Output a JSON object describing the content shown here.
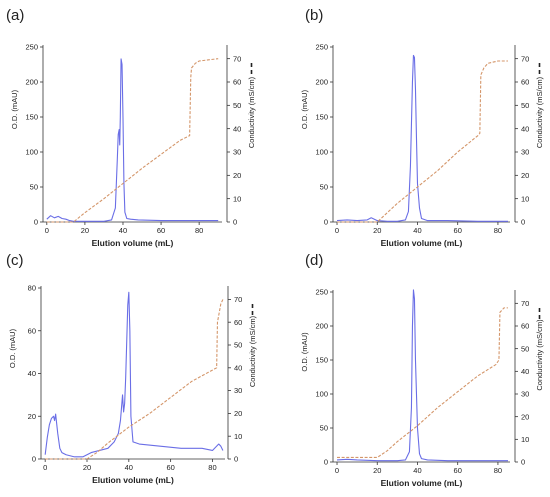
{
  "figure": {
    "colors": {
      "od": "#6a6ee6",
      "conductivity": "#d4966a",
      "axis": "#333333"
    }
  },
  "chart_data": [
    {
      "panel": "(a)",
      "type": "line",
      "xlabel": "Elution volume (mL)",
      "ylabel_left": "O.D. (mAU)",
      "ylabel_right": "Conductivity (mS/cm)",
      "xlim": [
        -2,
        92
      ],
      "xticks": [
        0,
        20,
        40,
        60,
        80
      ],
      "ylim_left": [
        0,
        250
      ],
      "yticks_left": [
        0,
        50,
        100,
        150,
        200,
        250
      ],
      "ylim_right": [
        0,
        75
      ],
      "yticks_right": [
        0,
        10,
        20,
        30,
        40,
        50,
        60,
        70
      ],
      "series": [
        {
          "axis": "left",
          "x": [
            0,
            2,
            4,
            6,
            8,
            10,
            12,
            14,
            18,
            24,
            30,
            34,
            36,
            37,
            37.5,
            38,
            38.3,
            38.6,
            39,
            39.5,
            40,
            40.5,
            41,
            42,
            44,
            48,
            60,
            80,
            90
          ],
          "y": [
            4,
            9,
            6,
            8,
            5,
            4,
            2,
            1,
            1,
            1,
            1,
            3,
            20,
            88,
            125,
            132,
            110,
            150,
            233,
            225,
            150,
            55,
            14,
            5,
            4,
            3,
            2,
            2,
            2
          ]
        },
        {
          "axis": "right",
          "x": [
            0,
            5,
            10,
            14,
            20,
            30,
            40,
            50,
            60,
            70,
            75,
            75.6,
            76,
            78,
            80,
            85,
            90
          ],
          "y": [
            0,
            0,
            0,
            0,
            4,
            10,
            16.5,
            23,
            29,
            35,
            37,
            62,
            66,
            68,
            69,
            69.5,
            70
          ]
        }
      ]
    },
    {
      "panel": "(b)",
      "type": "line",
      "xlabel": "Elution volume (mL)",
      "ylabel_left": "O.D. (mAU)",
      "ylabel_right": "Conductivity (mS/cm)",
      "xlim": [
        -2,
        86
      ],
      "xticks": [
        0,
        20,
        40,
        60,
        80
      ],
      "ylim_left": [
        0,
        250
      ],
      "yticks_left": [
        0,
        50,
        100,
        150,
        200,
        250
      ],
      "ylim_right": [
        0,
        75
      ],
      "yticks_right": [
        0,
        10,
        20,
        30,
        40,
        50,
        60,
        70
      ],
      "series": [
        {
          "axis": "left",
          "x": [
            0,
            5,
            10,
            15,
            17,
            20,
            25,
            30,
            34,
            35.5,
            36.5,
            37.5,
            38,
            38.5,
            39,
            39.5,
            40,
            41,
            42,
            45,
            55,
            70,
            85
          ],
          "y": [
            2,
            3,
            2,
            3,
            6,
            2,
            1,
            1,
            3,
            15,
            80,
            200,
            238,
            235,
            190,
            120,
            55,
            20,
            5,
            2,
            2,
            1,
            1
          ]
        },
        {
          "axis": "right",
          "x": [
            0,
            10,
            20,
            25,
            30,
            40,
            50,
            60,
            70,
            71,
            71.5,
            73,
            75,
            80,
            85
          ],
          "y": [
            0,
            0,
            0,
            4,
            8,
            15,
            22,
            30,
            37,
            38,
            63,
            66,
            68,
            69,
            69
          ]
        }
      ]
    },
    {
      "panel": "(c)",
      "type": "line",
      "xlabel": "Elution volume (mL)",
      "ylabel_left": "O.D. (mAU)",
      "ylabel_right": "Conductivity (mS/cm)",
      "xlim": [
        -2,
        86
      ],
      "xticks": [
        0,
        20,
        40,
        60,
        80
      ],
      "ylim_left": [
        0,
        80
      ],
      "yticks_left": [
        0,
        20,
        40,
        60,
        80
      ],
      "ylim_right": [
        0,
        75
      ],
      "yticks_right": [
        0,
        10,
        20,
        30,
        40,
        50,
        60,
        70
      ],
      "series": [
        {
          "axis": "left",
          "x": [
            0,
            1,
            2,
            3,
            4,
            4.5,
            5,
            6,
            7,
            8,
            10,
            14,
            18,
            20,
            22,
            26,
            30,
            33,
            35,
            36,
            37,
            37.5,
            38,
            38.5,
            39,
            39.5,
            40,
            40.5,
            41,
            42,
            45,
            55,
            65,
            75,
            80,
            83,
            84,
            85
          ],
          "y": [
            2,
            10,
            16,
            19,
            20,
            18,
            21,
            12,
            5,
            3,
            2,
            1,
            1,
            2,
            3,
            4,
            5,
            8,
            12,
            18,
            30,
            22,
            26,
            38,
            55,
            72,
            78,
            60,
            20,
            8,
            7,
            6,
            5,
            5,
            4,
            7,
            6,
            4
          ]
        },
        {
          "axis": "right",
          "x": [
            0,
            10,
            20,
            25,
            30,
            40,
            50,
            60,
            70,
            80,
            82,
            82.4,
            84,
            85
          ],
          "y": [
            0,
            0,
            0,
            3,
            7,
            14,
            20,
            27,
            34,
            39,
            40,
            60,
            68,
            70
          ]
        }
      ]
    },
    {
      "panel": "(d)",
      "type": "line",
      "xlabel": "Elution volume (mL)",
      "ylabel_left": "O.D. (mAU)",
      "ylabel_right": "Conductivity (mS/cm)",
      "xlim": [
        -2,
        86
      ],
      "xticks": [
        0,
        20,
        40,
        60,
        80
      ],
      "ylim_left": [
        0,
        250
      ],
      "yticks_left": [
        0,
        50,
        100,
        150,
        200,
        250
      ],
      "ylim_right": [
        0,
        75
      ],
      "yticks_right": [
        0,
        10,
        20,
        30,
        40,
        50,
        60,
        70
      ],
      "series": [
        {
          "axis": "left",
          "x": [
            0,
            5,
            10,
            20,
            30,
            34,
            36,
            37,
            37.5,
            38,
            38.5,
            39,
            40,
            41,
            42,
            45,
            55,
            70,
            85
          ],
          "y": [
            3,
            4,
            3,
            2,
            2,
            3,
            15,
            80,
            200,
            253,
            240,
            150,
            50,
            12,
            5,
            3,
            2,
            2,
            2
          ]
        },
        {
          "axis": "right",
          "x": [
            0,
            5,
            10,
            20,
            25,
            30,
            40,
            50,
            60,
            70,
            79,
            80.5,
            81,
            83,
            85
          ],
          "y": [
            2,
            2,
            2,
            2,
            5,
            9,
            16,
            24,
            31,
            38,
            43,
            45,
            66,
            68,
            68
          ]
        }
      ]
    }
  ]
}
